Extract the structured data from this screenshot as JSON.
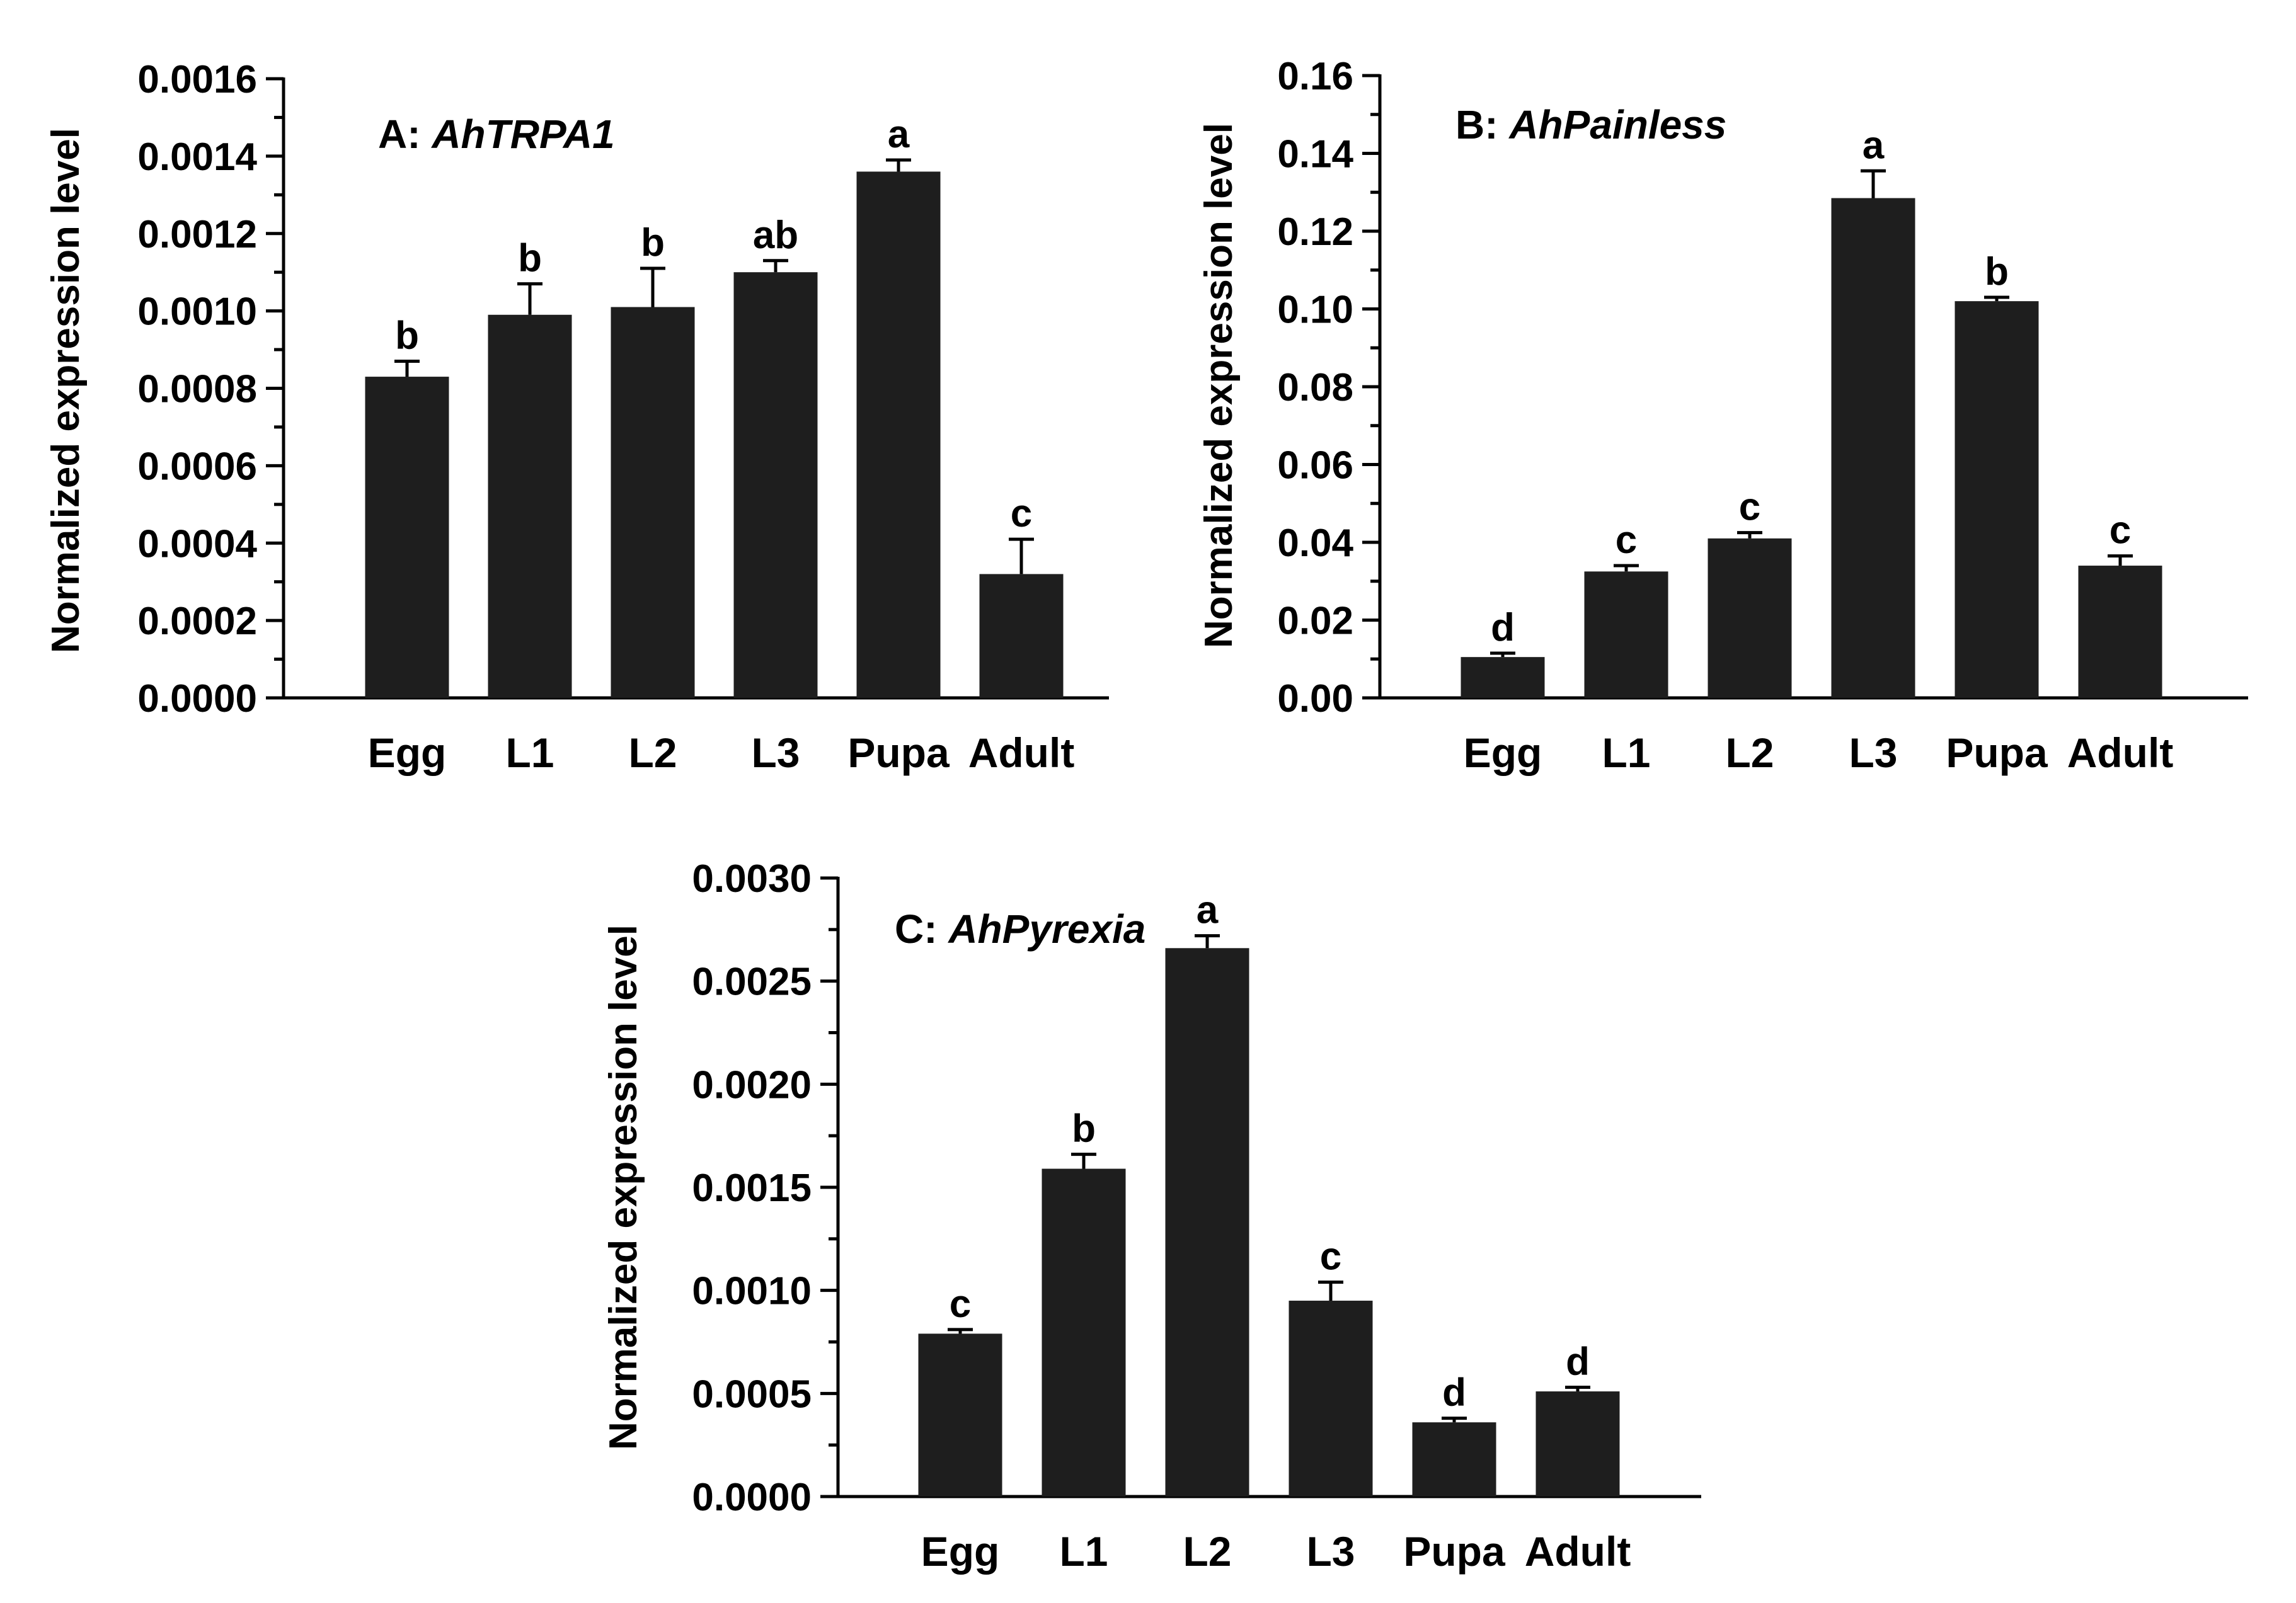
{
  "colors": {
    "bar": "#1e1e1e",
    "axis": "#000000",
    "background": "#ffffff"
  },
  "chart_data": [
    {
      "type": "bar",
      "panel": "A",
      "title_prefix": "A: ",
      "title_gene": "AhTRPA1",
      "ylabel": "Normalized expression level",
      "xlabel": "",
      "ylim": [
        0,
        0.0016
      ],
      "yticks": [
        "0.0000",
        "0.0002",
        "0.0004",
        "0.0006",
        "0.0008",
        "0.0010",
        "0.0012",
        "0.0014",
        "0.0016"
      ],
      "categories": [
        "Egg",
        "L1",
        "L2",
        "L3",
        "Pupa",
        "Adult"
      ],
      "values": [
        0.00083,
        0.00099,
        0.00101,
        0.0011,
        0.00136,
        0.00032
      ],
      "errors": [
        4e-05,
        8e-05,
        0.0001,
        3e-05,
        3e-05,
        9e-05
      ],
      "labels": [
        "b",
        "b",
        "b",
        "ab",
        "a",
        "c"
      ]
    },
    {
      "type": "bar",
      "panel": "B",
      "title_prefix": "B: ",
      "title_gene": "AhPainless",
      "ylabel": "Normalized expression level",
      "xlabel": "",
      "ylim": [
        0,
        0.16
      ],
      "yticks": [
        "0.00",
        "0.02",
        "0.04",
        "0.06",
        "0.08",
        "0.10",
        "0.12",
        "0.14",
        "0.16"
      ],
      "categories": [
        "Egg",
        "L1",
        "L2",
        "L3",
        "Pupa",
        "Adult"
      ],
      "values": [
        0.0105,
        0.0325,
        0.041,
        0.1285,
        0.102,
        0.034
      ],
      "errors": [
        0.001,
        0.0015,
        0.0015,
        0.007,
        0.001,
        0.0025
      ],
      "labels": [
        "d",
        "c",
        "c",
        "a",
        "b",
        "c"
      ]
    },
    {
      "type": "bar",
      "panel": "C",
      "title_prefix": "C: ",
      "title_gene": "AhPyrexia",
      "ylabel": "Normalized expression level",
      "xlabel": "",
      "ylim": [
        0,
        0.003
      ],
      "yticks": [
        "0.0000",
        "0.0005",
        "0.0010",
        "0.0015",
        "0.0020",
        "0.0025",
        "0.0030"
      ],
      "categories": [
        "Egg",
        "L1",
        "L2",
        "L3",
        "Pupa",
        "Adult"
      ],
      "values": [
        0.00079,
        0.00159,
        0.00266,
        0.00095,
        0.00036,
        0.00051
      ],
      "errors": [
        2e-05,
        7e-05,
        6e-05,
        9e-05,
        2e-05,
        2e-05
      ],
      "labels": [
        "c",
        "b",
        "a",
        "c",
        "d",
        "d"
      ]
    }
  ]
}
